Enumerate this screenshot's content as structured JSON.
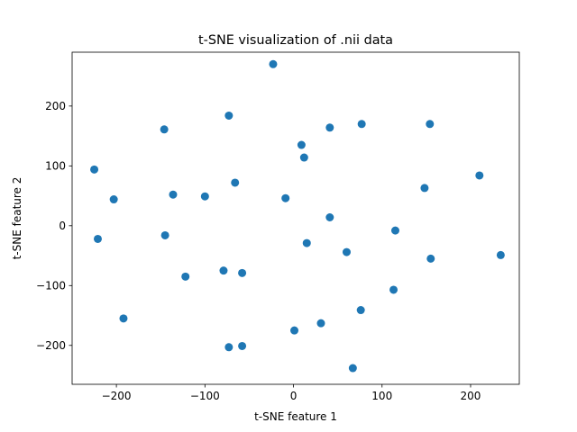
{
  "chart_data": {
    "type": "scatter",
    "title": "t-SNE visualization of .nii data",
    "xlabel": "t-SNE feature 1",
    "ylabel": "t-SNE feature 2",
    "xlim": [
      -250,
      255
    ],
    "ylim": [
      -265,
      290
    ],
    "xticks": [
      -200,
      -100,
      0,
      100,
      200
    ],
    "yticks": [
      -200,
      -100,
      0,
      100,
      200
    ],
    "grid": false,
    "marker_color": "#1f77b4",
    "points": [
      {
        "x": -23,
        "y": 270
      },
      {
        "x": -73,
        "y": 184
      },
      {
        "x": -146,
        "y": 161
      },
      {
        "x": 77,
        "y": 170
      },
      {
        "x": 154,
        "y": 170
      },
      {
        "x": 41,
        "y": 164
      },
      {
        "x": 9,
        "y": 135
      },
      {
        "x": 12,
        "y": 114
      },
      {
        "x": -225,
        "y": 94
      },
      {
        "x": 210,
        "y": 84
      },
      {
        "x": -66,
        "y": 72
      },
      {
        "x": 148,
        "y": 63
      },
      {
        "x": -136,
        "y": 52
      },
      {
        "x": -100,
        "y": 49
      },
      {
        "x": -9,
        "y": 46
      },
      {
        "x": -203,
        "y": 44
      },
      {
        "x": 41,
        "y": 14
      },
      {
        "x": 115,
        "y": -8
      },
      {
        "x": -145,
        "y": -16
      },
      {
        "x": -221,
        "y": -22
      },
      {
        "x": 15,
        "y": -29
      },
      {
        "x": 60,
        "y": -44
      },
      {
        "x": 234,
        "y": -49
      },
      {
        "x": 155,
        "y": -55
      },
      {
        "x": -79,
        "y": -75
      },
      {
        "x": -58,
        "y": -79
      },
      {
        "x": -122,
        "y": -85
      },
      {
        "x": 113,
        "y": -107
      },
      {
        "x": 76,
        "y": -141
      },
      {
        "x": -192,
        "y": -155
      },
      {
        "x": 31,
        "y": -163
      },
      {
        "x": 1,
        "y": -175
      },
      {
        "x": -58,
        "y": -201
      },
      {
        "x": -73,
        "y": -203
      },
      {
        "x": 67,
        "y": -238
      }
    ]
  }
}
